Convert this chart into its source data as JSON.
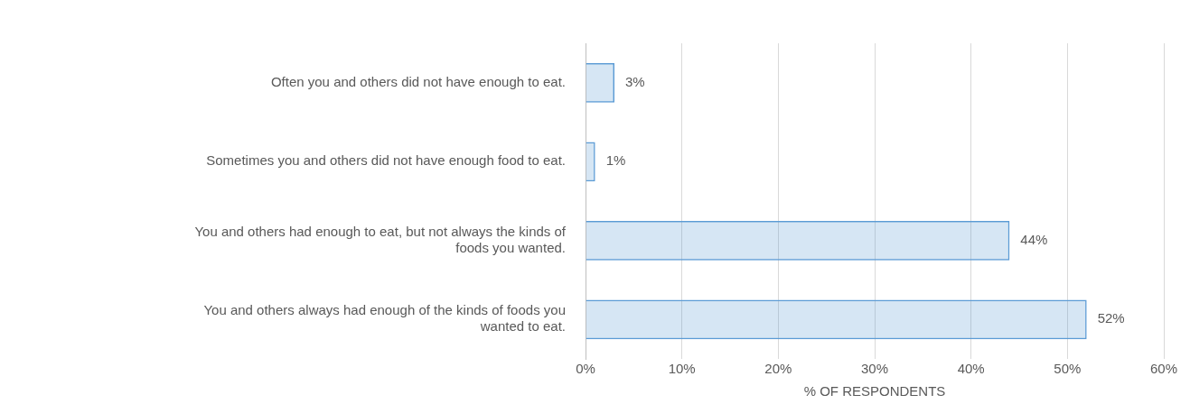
{
  "chart_data": {
    "type": "bar",
    "orientation": "horizontal",
    "xlabel": "% OF RESPONDENTS",
    "categories": [
      "Often you and others did not have enough to eat.",
      "Sometimes you and others did not have enough food to eat.",
      "You and others had enough to eat, but not always the kinds of foods you wanted.",
      "You and others always had enough of the kinds of foods you wanted to eat."
    ],
    "values": [
      3,
      1,
      44,
      52
    ],
    "value_labels": [
      "3%",
      "1%",
      "44%",
      "52%"
    ],
    "color": "#5b9bd5",
    "xlim": [
      0,
      60
    ],
    "xticks": [
      {
        "value": 0,
        "label": "0%"
      },
      {
        "value": 10,
        "label": "10%"
      },
      {
        "value": 20,
        "label": "20%"
      },
      {
        "value": 30,
        "label": "30%"
      },
      {
        "value": 40,
        "label": "40%"
      },
      {
        "value": 50,
        "label": "50%"
      },
      {
        "value": 60,
        "label": "60%"
      }
    ],
    "grid": "x",
    "legend": false
  }
}
